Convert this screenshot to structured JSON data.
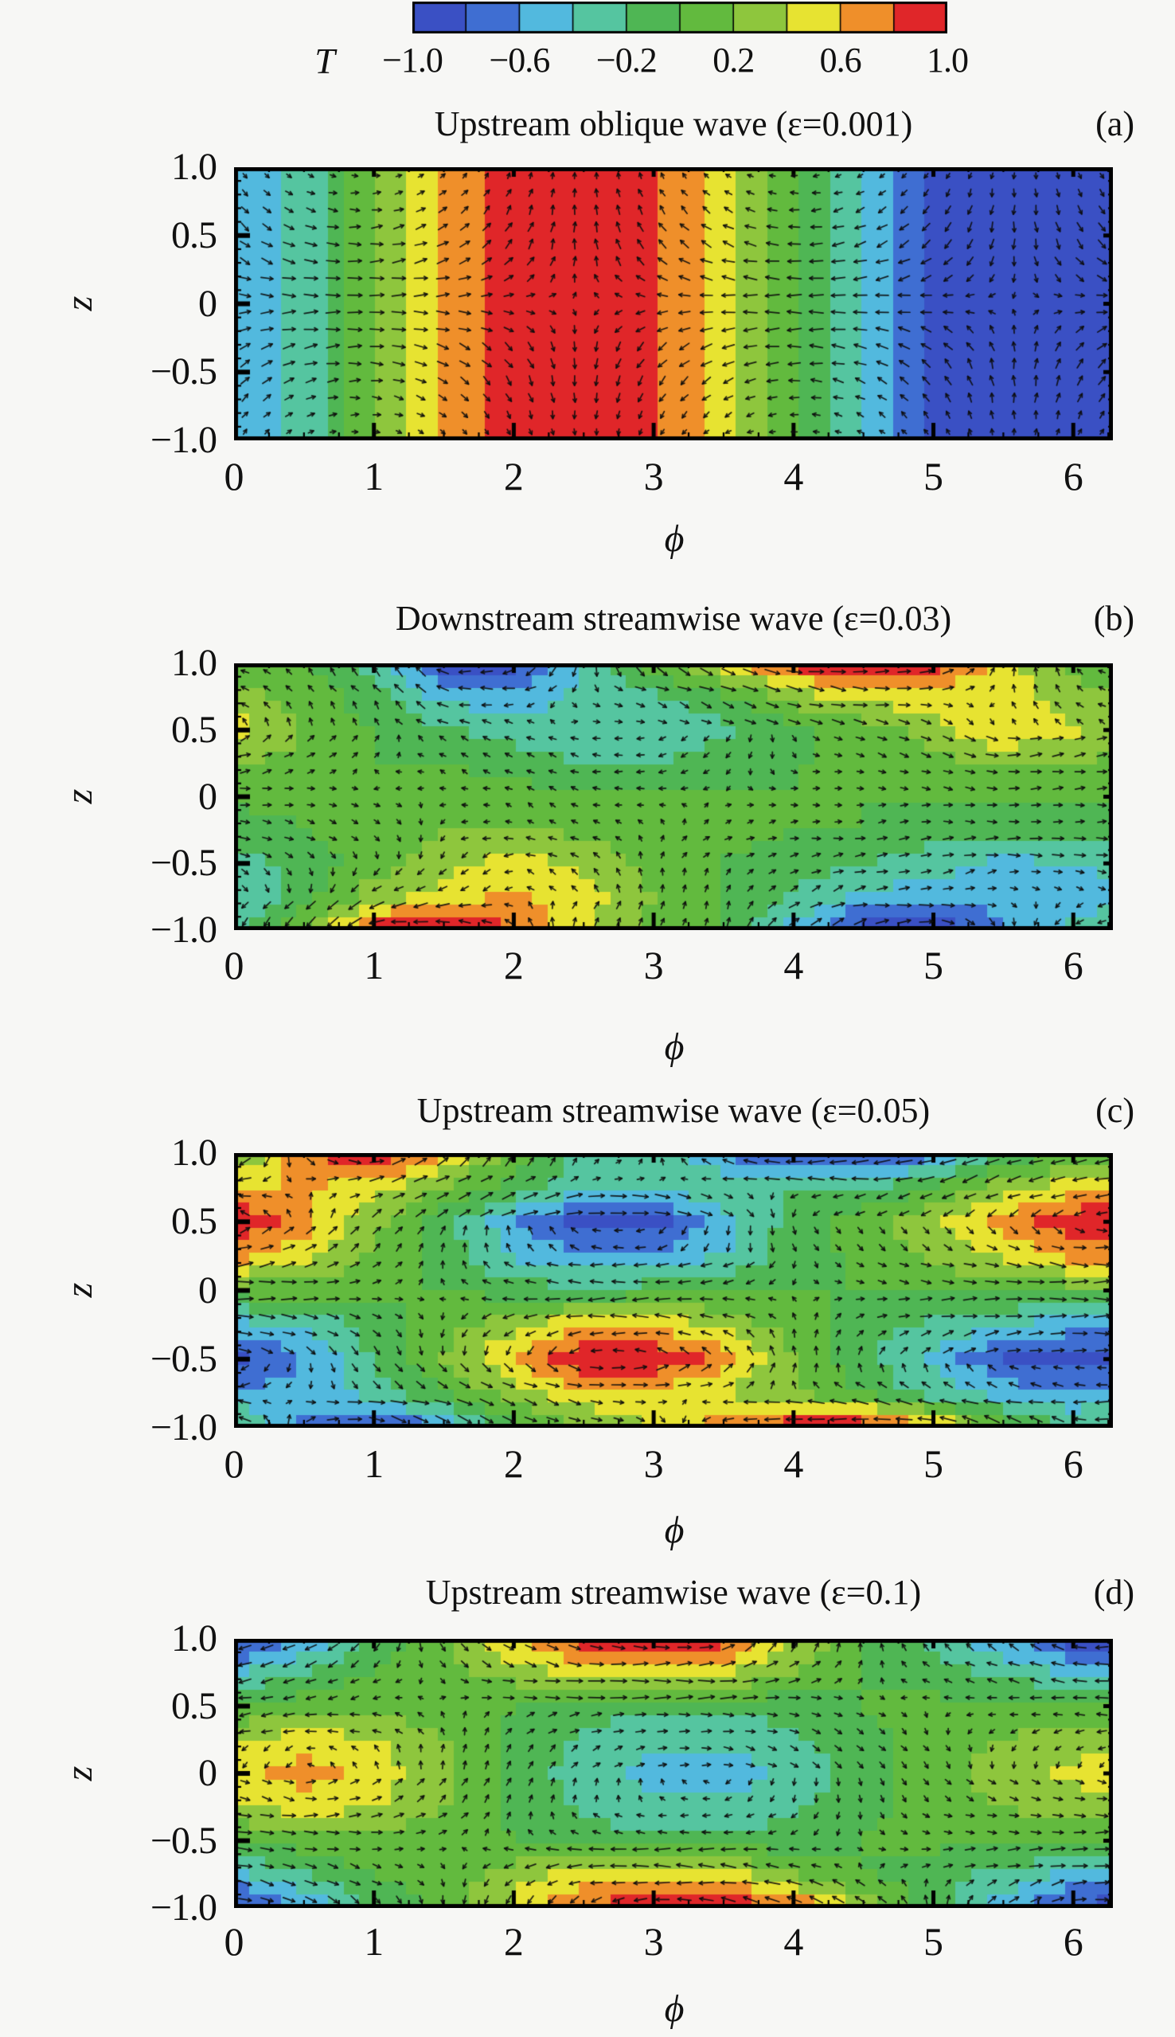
{
  "figure": {
    "background": "#f7f7f5"
  },
  "colorbar": {
    "label": "T",
    "range": [
      -1,
      1
    ],
    "n_bands": 10,
    "band_colors": [
      "#3a50c4",
      "#3f6ed2",
      "#52b9de",
      "#55c5a0",
      "#4fb654",
      "#62ba3e",
      "#8ec63d",
      "#e7e331",
      "#ef8f2a",
      "#e02629"
    ],
    "tick_values": [
      -1.0,
      -0.6,
      -0.2,
      0.2,
      0.6,
      1.0
    ],
    "tick_labels": [
      "−1.0",
      "−0.6",
      "−0.2",
      "0.2",
      "0.6",
      "1.0"
    ]
  },
  "axes": {
    "x_label": "ϕ",
    "y_label": "z",
    "x_range": [
      0,
      6.2832
    ],
    "y_range": [
      -1,
      1
    ],
    "x_tick_values": [
      0,
      1,
      2,
      3,
      4,
      5,
      6
    ],
    "x_tick_labels": [
      "0",
      "1",
      "2",
      "3",
      "4",
      "5",
      "6"
    ],
    "x_minor_step": 0.25,
    "y_tick_values": [
      1.0,
      0.5,
      0,
      -0.5,
      -1.0
    ],
    "y_tick_labels": [
      "1.0",
      "0.5",
      "0",
      "−0.5",
      "−1.0"
    ],
    "y_minor_step": 0.1
  },
  "chart_data": [
    {
      "type": "heatmap",
      "subtype": "filled-contour-with-quiver",
      "title": "Upstream oblique wave (ε=0.001)",
      "panel_label": "(a)",
      "epsilon": 0.001,
      "xlabel": "ϕ",
      "ylabel": "z",
      "x_range": [
        0,
        6.2832
      ],
      "y_range": [
        -1,
        1
      ],
      "phi": [
        0,
        0.5,
        1,
        1.5,
        2,
        2.5,
        3,
        3.5,
        4,
        4.5,
        5,
        5.5,
        6,
        6.2832
      ],
      "z": [
        1,
        0.75,
        0.5,
        0.25,
        0,
        -0.25,
        -0.5,
        -0.75,
        -1
      ],
      "T": [
        [
          -0.62,
          -0.32,
          0.15,
          0.61,
          0.91,
          1.0,
          0.84,
          0.49,
          0.02,
          -0.46,
          -0.83,
          -1.0,
          -0.92,
          -0.8
        ],
        [
          -0.62,
          -0.32,
          0.15,
          0.61,
          0.91,
          1.0,
          0.84,
          0.49,
          0.02,
          -0.46,
          -0.83,
          -1.0,
          -0.92,
          -0.8
        ],
        [
          -0.62,
          -0.32,
          0.15,
          0.61,
          0.91,
          1.0,
          0.84,
          0.49,
          0.02,
          -0.46,
          -0.83,
          -1.0,
          -0.92,
          -0.8
        ],
        [
          -0.62,
          -0.32,
          0.15,
          0.61,
          0.91,
          1.0,
          0.84,
          0.49,
          0.02,
          -0.46,
          -0.83,
          -1.0,
          -0.92,
          -0.8
        ],
        [
          -0.62,
          -0.32,
          0.15,
          0.61,
          0.91,
          1.0,
          0.84,
          0.49,
          0.02,
          -0.46,
          -0.83,
          -1.0,
          -0.92,
          -0.8
        ],
        [
          -0.62,
          -0.32,
          0.15,
          0.61,
          0.91,
          1.0,
          0.84,
          0.49,
          0.02,
          -0.46,
          -0.83,
          -1.0,
          -0.92,
          -0.8
        ],
        [
          -0.62,
          -0.32,
          0.15,
          0.61,
          0.91,
          1.0,
          0.84,
          0.49,
          0.02,
          -0.46,
          -0.83,
          -1.0,
          -0.92,
          -0.8
        ],
        [
          -0.62,
          -0.32,
          0.15,
          0.61,
          0.91,
          1.0,
          0.84,
          0.49,
          0.02,
          -0.46,
          -0.83,
          -1.0,
          -0.92,
          -0.8
        ],
        [
          -0.62,
          -0.32,
          0.15,
          0.61,
          0.91,
          1.0,
          0.84,
          0.49,
          0.02,
          -0.46,
          -0.83,
          -1.0,
          -0.92,
          -0.8
        ]
      ],
      "quiver": {
        "model": "cellular",
        "phase": 0.9,
        "u_amp": 1.0,
        "w_amp": 0.55
      }
    },
    {
      "type": "heatmap",
      "subtype": "filled-contour-with-quiver",
      "title": "Downstream streamwise wave (ε=0.03)",
      "panel_label": "(b)",
      "epsilon": 0.03,
      "xlabel": "ϕ",
      "ylabel": "z",
      "x_range": [
        0,
        6.2832
      ],
      "y_range": [
        -1,
        1
      ],
      "phi": [
        0,
        0.5,
        1,
        1.5,
        2,
        2.5,
        3,
        3.5,
        4,
        4.5,
        5,
        5.5,
        6,
        6.2832
      ],
      "z": [
        1,
        0.75,
        0.5,
        0.25,
        0,
        -0.25,
        -0.5,
        -0.75,
        -1
      ],
      "T": [
        [
          0.1,
          0.0,
          -0.3,
          -0.9,
          -0.9,
          -0.4,
          0.1,
          0.5,
          0.9,
          1.0,
          0.9,
          0.5,
          0.15,
          0.1
        ],
        [
          0.3,
          0.1,
          -0.1,
          -0.5,
          -0.5,
          -0.35,
          -0.25,
          0.0,
          0.3,
          0.5,
          0.5,
          0.5,
          0.25,
          0.2
        ],
        [
          0.5,
          0.2,
          0.0,
          -0.15,
          -0.3,
          -0.4,
          -0.4,
          -0.25,
          -0.05,
          0.1,
          0.3,
          0.6,
          0.45,
          0.35
        ],
        [
          0.25,
          0.1,
          0.0,
          0.0,
          -0.1,
          -0.2,
          -0.2,
          -0.1,
          0.0,
          0.0,
          0.1,
          0.25,
          0.2,
          0.15
        ],
        [
          0.05,
          0.05,
          0.1,
          0.1,
          0.1,
          0.0,
          0.0,
          0.0,
          0.0,
          0.0,
          0.0,
          0.05,
          0.0,
          0.0
        ],
        [
          -0.1,
          0.0,
          0.1,
          0.2,
          0.2,
          0.15,
          0.1,
          0.05,
          0.0,
          0.0,
          -0.1,
          -0.1,
          -0.1,
          -0.1
        ],
        [
          -0.3,
          -0.1,
          0.1,
          0.3,
          0.5,
          0.35,
          0.15,
          0.0,
          -0.1,
          -0.2,
          -0.3,
          -0.45,
          -0.4,
          -0.35
        ],
        [
          -0.4,
          -0.1,
          0.3,
          0.5,
          0.65,
          0.5,
          0.2,
          0.0,
          -0.2,
          -0.45,
          -0.5,
          -0.55,
          -0.5,
          -0.45
        ],
        [
          -0.25,
          0.2,
          0.9,
          1.0,
          0.8,
          0.4,
          0.15,
          0.0,
          -0.5,
          -0.9,
          -1.0,
          -0.6,
          -0.35,
          -0.25
        ]
      ],
      "quiver": {
        "model": "contour-flow",
        "u_scale": 0.5,
        "w_scale": 0.55,
        "base_u": 0.15
      }
    },
    {
      "type": "heatmap",
      "subtype": "filled-contour-with-quiver",
      "title": "Upstream streamwise wave (ε=0.05)",
      "panel_label": "(c)",
      "epsilon": 0.05,
      "xlabel": "ϕ",
      "ylabel": "z",
      "x_range": [
        0,
        6.2832
      ],
      "y_range": [
        -1,
        1
      ],
      "phi": [
        0,
        0.5,
        1,
        1.5,
        2,
        2.5,
        3,
        3.5,
        4,
        4.5,
        5,
        5.5,
        6,
        6.2832
      ],
      "z": [
        1,
        0.75,
        0.5,
        0.25,
        0,
        -0.25,
        -0.5,
        -0.75,
        -1
      ],
      "T": [
        [
          0.1,
          0.8,
          1.0,
          0.6,
          0.1,
          -0.25,
          -0.3,
          -0.6,
          -0.9,
          -0.9,
          -0.7,
          -0.2,
          0.0,
          0.1
        ],
        [
          0.6,
          0.6,
          0.5,
          0.2,
          -0.1,
          -0.3,
          -0.3,
          -0.25,
          -0.2,
          -0.2,
          0.0,
          0.3,
          0.5,
          0.6
        ],
        [
          1.0,
          0.7,
          0.25,
          -0.1,
          -0.55,
          -0.9,
          -0.9,
          -0.5,
          -0.1,
          0.1,
          0.35,
          0.65,
          0.95,
          1.0
        ],
        [
          0.7,
          0.45,
          0.15,
          -0.1,
          -0.4,
          -0.6,
          -0.6,
          -0.4,
          -0.1,
          0.05,
          0.25,
          0.45,
          0.7,
          0.7
        ],
        [
          0.1,
          0.1,
          0.05,
          0.0,
          -0.1,
          -0.15,
          -0.1,
          -0.05,
          0.0,
          0.0,
          0.05,
          0.05,
          0.1,
          0.1
        ],
        [
          -0.5,
          -0.35,
          -0.1,
          0.1,
          0.35,
          0.55,
          0.55,
          0.35,
          0.1,
          -0.1,
          -0.25,
          -0.4,
          -0.5,
          -0.5
        ],
        [
          -0.9,
          -0.6,
          -0.2,
          0.2,
          0.6,
          1.0,
          1.0,
          0.7,
          0.2,
          -0.15,
          -0.45,
          -0.8,
          -0.9,
          -0.9
        ],
        [
          -0.6,
          -0.5,
          -0.3,
          0.0,
          0.3,
          0.55,
          0.55,
          0.4,
          0.2,
          0.0,
          -0.3,
          -0.5,
          -0.6,
          -0.6
        ],
        [
          -0.1,
          -0.7,
          -0.9,
          -0.6,
          -0.1,
          0.2,
          0.4,
          0.7,
          0.95,
          1.0,
          0.7,
          0.1,
          -0.2,
          -0.1
        ]
      ],
      "quiver": {
        "model": "contour-flow",
        "u_scale": 0.5,
        "w_scale": 0.55,
        "base_u": 0.15
      }
    },
    {
      "type": "heatmap",
      "subtype": "filled-contour-with-quiver",
      "title": "Upstream streamwise wave (ε=0.1)",
      "panel_label": "(d)",
      "epsilon": 0.1,
      "xlabel": "ϕ",
      "ylabel": "z",
      "x_range": [
        0,
        6.2832
      ],
      "y_range": [
        -1,
        1
      ],
      "phi": [
        0,
        0.5,
        1,
        1.5,
        2,
        2.5,
        3,
        3.5,
        4,
        4.5,
        5,
        5.5,
        6,
        6.2832
      ],
      "z": [
        1,
        0.75,
        0.5,
        0.25,
        0,
        -0.25,
        -0.5,
        -0.75,
        -1
      ],
      "T": [
        [
          -0.9,
          -0.6,
          -0.15,
          0.2,
          0.6,
          0.9,
          1.0,
          0.9,
          0.4,
          0.0,
          -0.25,
          -0.55,
          -0.9,
          -0.9
        ],
        [
          -0.45,
          -0.2,
          0.0,
          0.1,
          0.3,
          0.5,
          0.5,
          0.45,
          0.2,
          0.0,
          -0.1,
          -0.25,
          -0.45,
          -0.45
        ],
        [
          0.0,
          0.1,
          0.15,
          0.1,
          0.0,
          -0.1,
          -0.15,
          -0.15,
          -0.1,
          0.0,
          0.05,
          0.05,
          0.05,
          0.0
        ],
        [
          0.35,
          0.5,
          0.4,
          0.2,
          -0.05,
          -0.25,
          -0.35,
          -0.35,
          -0.25,
          -0.05,
          0.1,
          0.2,
          0.3,
          0.35
        ],
        [
          0.5,
          0.7,
          0.55,
          0.25,
          -0.05,
          -0.3,
          -0.45,
          -0.5,
          -0.35,
          -0.1,
          0.1,
          0.3,
          0.45,
          0.5
        ],
        [
          0.35,
          0.5,
          0.4,
          0.2,
          -0.05,
          -0.25,
          -0.35,
          -0.35,
          -0.25,
          -0.05,
          0.1,
          0.2,
          0.3,
          0.35
        ],
        [
          0.0,
          0.1,
          0.15,
          0.1,
          0.0,
          -0.1,
          -0.15,
          -0.15,
          -0.1,
          0.0,
          0.05,
          0.05,
          0.05,
          0.0
        ],
        [
          -0.45,
          -0.2,
          0.0,
          0.1,
          0.3,
          0.5,
          0.5,
          0.45,
          0.2,
          0.0,
          -0.1,
          -0.25,
          -0.45,
          -0.45
        ],
        [
          -0.9,
          -0.6,
          -0.2,
          0.1,
          0.45,
          0.8,
          1.0,
          1.0,
          0.8,
          0.3,
          -0.1,
          -0.5,
          -0.85,
          -0.9
        ]
      ],
      "quiver": {
        "model": "contour-flow",
        "u_scale": 0.5,
        "w_scale": 0.55,
        "base_u": 0.15
      }
    }
  ]
}
